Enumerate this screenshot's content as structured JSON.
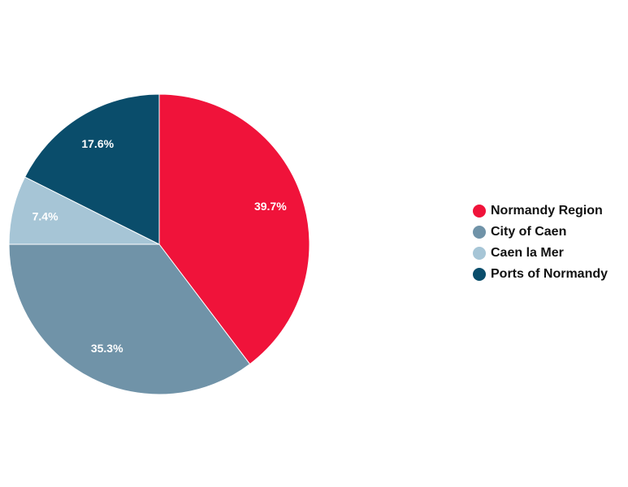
{
  "chart_data": {
    "type": "pie",
    "categories": [
      "Normandy Region",
      "City of Caen",
      "Caen la Mer",
      "Ports of Normandy"
    ],
    "values": [
      39.7,
      35.3,
      7.4,
      17.6
    ],
    "value_labels": [
      "39.7%",
      "35.3%",
      "7.4%",
      "17.6%"
    ],
    "colors": [
      "#f0133a",
      "#7093a8",
      "#a6c5d6",
      "#0a4d6b"
    ],
    "legend": "right"
  }
}
